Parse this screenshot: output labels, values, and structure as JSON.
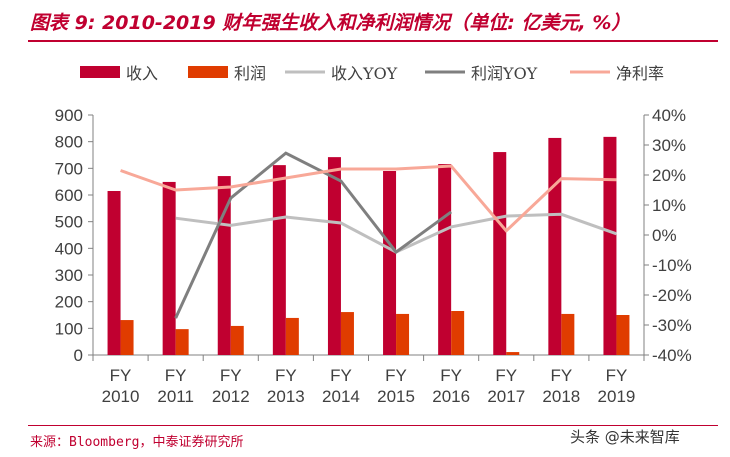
{
  "title": "图表 9: 2010-2019 财年强生收入和净利润情况（单位: 亿美元, %）",
  "source": "来源：Bloomberg，中泰证券研究所",
  "watermark": "头条 @未来智库",
  "chart_data": {
    "type": "bar",
    "categories": [
      "FY\n2010",
      "FY\n2011",
      "FY\n2012",
      "FY\n2013",
      "FY\n2014",
      "FY\n2015",
      "FY\n2016",
      "FY\n2017",
      "FY\n2018",
      "FY\n2019"
    ],
    "ylim": [
      0,
      900
    ],
    "yticks": [
      0,
      100,
      200,
      300,
      400,
      500,
      600,
      700,
      800,
      900
    ],
    "y2lim": [
      -40,
      40
    ],
    "y2ticks": [
      "-40%",
      "-30%",
      "-20%",
      "-10%",
      "0%",
      "10%",
      "20%",
      "30%",
      "40%"
    ],
    "legend_position": "top",
    "series": [
      {
        "name": "收入",
        "type": "bar",
        "axis": "left",
        "color": "#c00030",
        "values": [
          615,
          649,
          671,
          712,
          742,
          690,
          716,
          761,
          814,
          818
        ]
      },
      {
        "name": "利润",
        "type": "bar",
        "axis": "left",
        "color": "#e03c00",
        "values": [
          131,
          97,
          109,
          139,
          161,
          154,
          165,
          11,
          154,
          150
        ]
      },
      {
        "name": "收入YOY",
        "type": "line",
        "axis": "right",
        "color": "#bfbfbf",
        "values": [
          null,
          5.6,
          3.2,
          6.0,
          4.0,
          -5.7,
          2.7,
          6.3,
          6.9,
          0.4
        ]
      },
      {
        "name": "利润YOY",
        "type": "line",
        "axis": "right",
        "color": "#7f7f7f",
        "values": [
          null,
          -27.7,
          12.3,
          27.3,
          18.0,
          -5.7,
          7.7,
          null,
          null,
          null
        ]
      },
      {
        "name": "净利率",
        "type": "line",
        "axis": "right",
        "color": "#f8a898",
        "values": [
          21.5,
          15.0,
          16.0,
          19.0,
          22.0,
          22.0,
          23.0,
          1.4,
          18.8,
          18.4
        ]
      }
    ]
  }
}
